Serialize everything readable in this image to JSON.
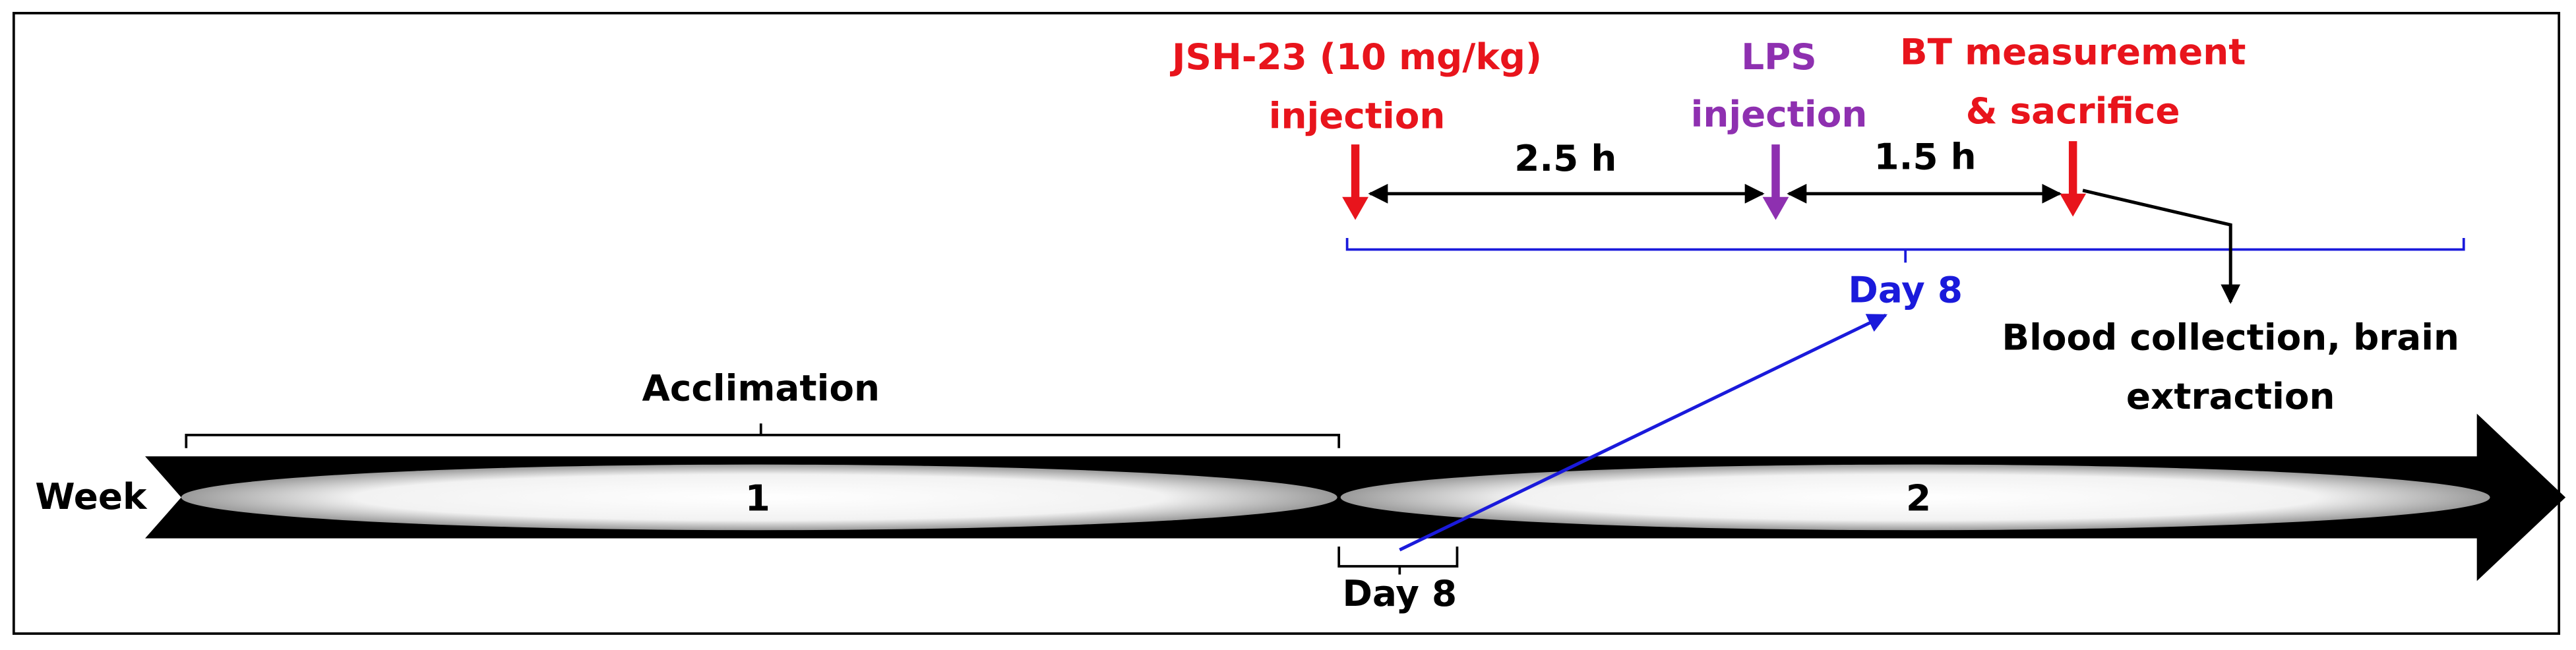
{
  "timeline": {
    "axis_label": "Week",
    "weeks": [
      "1",
      "2"
    ],
    "acclimation": "Acclimation",
    "day_label": "Day 8"
  },
  "events": [
    {
      "label_lines": [
        "JSH-23 (10 mg/kg)",
        "injection"
      ]
    },
    {
      "label_lines": [
        "LPS",
        "injection"
      ]
    },
    {
      "label_lines": [
        "BT measurement",
        "& sacrifice"
      ]
    }
  ],
  "intervals": [
    "2.5 h",
    "1.5 h"
  ],
  "day_detail": "Day 8",
  "outcome": [
    "Blood collection, brain",
    "extraction"
  ]
}
